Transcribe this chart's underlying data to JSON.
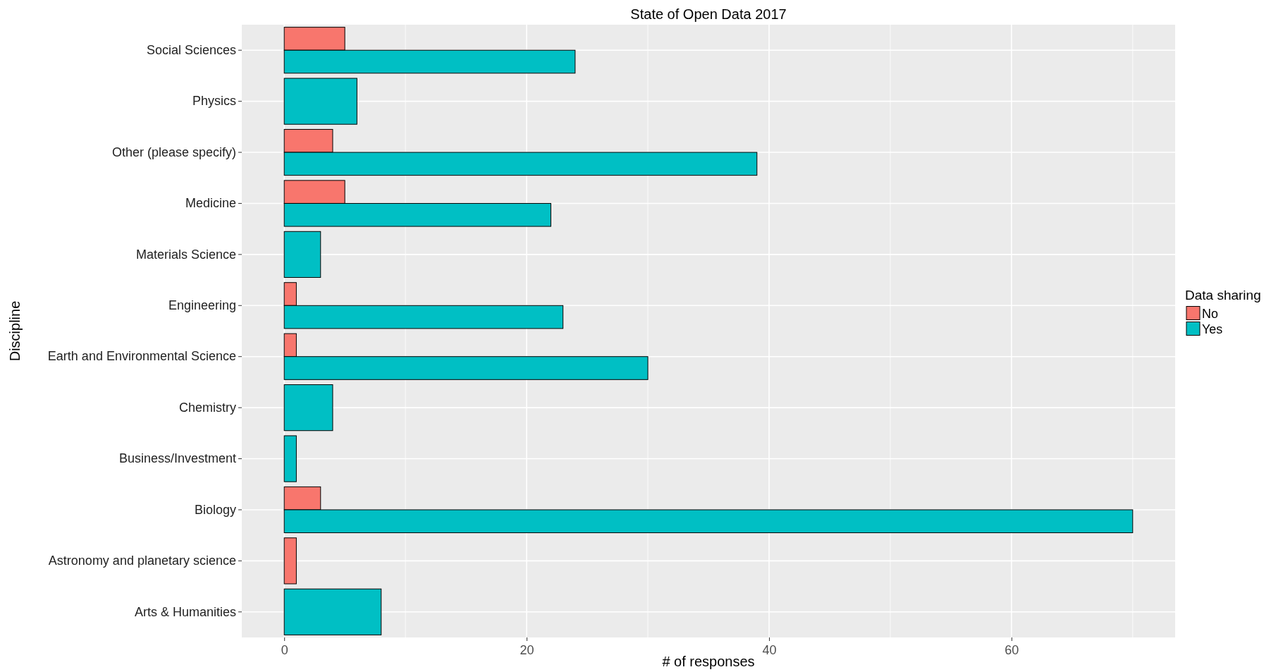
{
  "chart_data": {
    "type": "bar",
    "orientation": "horizontal",
    "title": "State of Open Data 2017",
    "xlabel": "# of responses",
    "ylabel": "Discipline",
    "legend_title": "Data sharing",
    "legend": "right",
    "grid": true,
    "categories": [
      "Social Sciences",
      "Physics",
      "Other (please specify)",
      "Medicine",
      "Materials Science",
      "Engineering",
      "Earth and Environmental Science",
      "Chemistry",
      "Business/Investment",
      "Biology",
      "Astronomy and planetary science",
      "Arts & Humanities"
    ],
    "xlim": [
      -3.5,
      73.5
    ],
    "xticks": [
      0,
      {
        "value": 10,
        "label": null
      },
      20,
      {
        "value": 30,
        "label": null
      },
      40,
      {
        "value": 50,
        "label": null
      },
      60,
      {
        "value": 70,
        "label": null
      }
    ],
    "series": [
      {
        "name": "No",
        "color": "#f8766d",
        "values": [
          5,
          null,
          4,
          5,
          null,
          1,
          1,
          null,
          null,
          3,
          1,
          null
        ]
      },
      {
        "name": "Yes",
        "color": "#00bfc4",
        "values": [
          24,
          6,
          39,
          22,
          3,
          23,
          30,
          4,
          1,
          70,
          null,
          8
        ]
      }
    ]
  }
}
